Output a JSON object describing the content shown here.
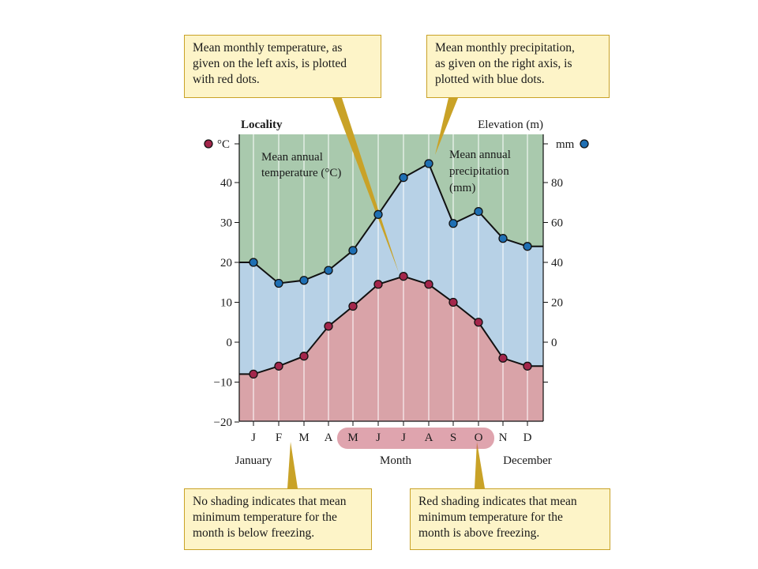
{
  "callouts": {
    "temperature": "Mean monthly temperature, as\ngiven on the left axis, is plotted\nwith red dots.",
    "precipitation": "Mean monthly precipitation,\nas given on the right axis, is\nplotted with blue dots.",
    "no_shading": "No shading indicates that mean\nminimum temperature for the\nmonth is below freezing.",
    "red_shading": "Red shading indicates that mean\nminimum temperature for the\nmonth is above freezing."
  },
  "colors": {
    "green_fill": "#a9c9ad",
    "blue_fill": "#b7d1e6",
    "red_fill": "#d9a3a8",
    "temp_dot": "#a3264b",
    "precip_dot": "#1f6fb3",
    "month_highlight": "#c45a6c"
  },
  "chart_data": {
    "type": "line",
    "header_left": "Locality",
    "header_right": "Elevation (m)",
    "left_unit": "°C",
    "right_unit": "mm",
    "categories": [
      "J",
      "F",
      "M",
      "A",
      "M",
      "J",
      "J",
      "A",
      "S",
      "O",
      "N",
      "D"
    ],
    "xlabel": "Month",
    "x_start_label": "January",
    "x_end_label": "December",
    "left_axis": {
      "ylim": [
        -20,
        50
      ],
      "ticks": [
        -20,
        -10,
        0,
        10,
        20,
        30,
        40
      ]
    },
    "right_axis": {
      "ylim": [
        -40,
        100
      ],
      "ticks": [
        0,
        20,
        40,
        60,
        80
      ]
    },
    "series": [
      {
        "axis": "left",
        "values": [
          -8,
          -6,
          -3.5,
          4,
          9,
          14.5,
          16.5,
          14.5,
          10,
          5,
          -4,
          -6
        ]
      },
      {
        "axis": "right",
        "values": [
          40,
          29.5,
          31,
          36,
          46,
          64,
          82.5,
          89.5,
          59.5,
          65.5,
          52,
          48
        ]
      }
    ],
    "area_label_temperature": "Mean annual\ntemperature (°C)",
    "area_label_precipitation": "Mean annual\nprecipitation\n(mm)",
    "shaded_months_above_freezing": [
      4,
      5,
      6,
      7,
      8,
      9
    ]
  }
}
